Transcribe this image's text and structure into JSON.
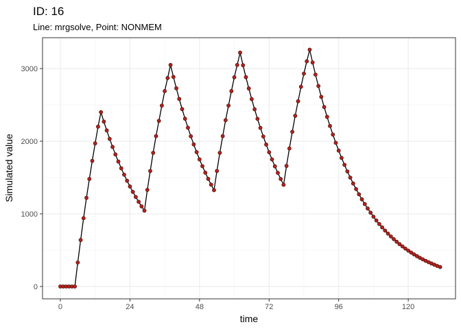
{
  "chart_data": {
    "type": "line",
    "title": "ID: 16",
    "subtitle": "Line: mrgsolve, Point: NONMEM",
    "x_label": "time",
    "y_label": "Simulated value",
    "x": [
      0,
      1,
      2,
      3,
      4,
      5,
      6,
      7,
      8,
      9,
      10,
      11,
      12,
      13,
      14,
      15,
      16,
      17,
      18,
      19,
      20,
      21,
      22,
      23,
      24,
      25,
      26,
      27,
      28,
      29,
      30,
      31,
      32,
      33,
      34,
      35,
      36,
      37,
      38,
      39,
      40,
      41,
      42,
      43,
      44,
      45,
      46,
      47,
      48,
      49,
      50,
      51,
      52,
      53,
      54,
      55,
      56,
      57,
      58,
      59,
      60,
      61,
      62,
      63,
      64,
      65,
      66,
      67,
      68,
      69,
      70,
      71,
      72,
      73,
      74,
      75,
      76,
      77,
      78,
      79,
      80,
      81,
      82,
      83,
      84,
      85,
      86,
      87,
      88,
      89,
      90,
      91,
      92,
      93,
      94,
      95,
      96,
      97,
      98,
      99,
      100,
      101,
      102,
      103,
      104,
      105,
      106,
      107,
      108,
      109,
      110,
      111,
      112,
      113,
      114,
      115,
      116,
      117,
      118,
      119,
      120,
      121,
      122,
      123,
      124,
      125,
      126,
      127,
      128,
      129,
      130,
      131
    ],
    "values": [
      0,
      0,
      0,
      0,
      0,
      0,
      330,
      640,
      940,
      1220,
      1480,
      1730,
      1970,
      2200,
      2400,
      2270,
      2148,
      2032,
      1922,
      1818,
      1720,
      1627,
      1539,
      1456,
      1377,
      1303,
      1233,
      1166,
      1103,
      1044,
      1330,
      1590,
      1840,
      2070,
      2280,
      2490,
      2690,
      2870,
      3050,
      2885,
      2729,
      2582,
      2442,
      2310,
      2186,
      2068,
      1956,
      1850,
      1750,
      1656,
      1567,
      1482,
      1402,
      1326,
      1590,
      1840,
      2070,
      2290,
      2490,
      2690,
      2880,
      3050,
      3220,
      3046,
      2882,
      2726,
      2579,
      2440,
      2308,
      2183,
      2065,
      1954,
      1848,
      1749,
      1654,
      1565,
      1480,
      1400,
      1660,
      1900,
      2130,
      2350,
      2550,
      2750,
      2930,
      3100,
      3260,
      3084,
      2917,
      2760,
      2611,
      2470,
      2336,
      2210,
      2091,
      1978,
      1871,
      1770,
      1675,
      1584,
      1499,
      1418,
      1341,
      1269,
      1200,
      1135,
      1074,
      1016,
      961,
      909,
      860,
      814,
      770,
      728,
      689,
      652,
      616,
      583,
      552,
      522,
      494,
      467,
      442,
      418,
      395,
      374,
      354,
      335,
      317,
      300,
      283,
      268
    ],
    "line_color": "#000000",
    "point_color": "#b2221c",
    "xlim": [
      -6.15,
      136.3
    ],
    "ylim": [
      -170,
      3425
    ],
    "xticks": [
      0,
      24,
      48,
      72,
      96,
      120
    ],
    "yticks": [
      0,
      1000,
      2000,
      3000
    ],
    "grid": true
  }
}
